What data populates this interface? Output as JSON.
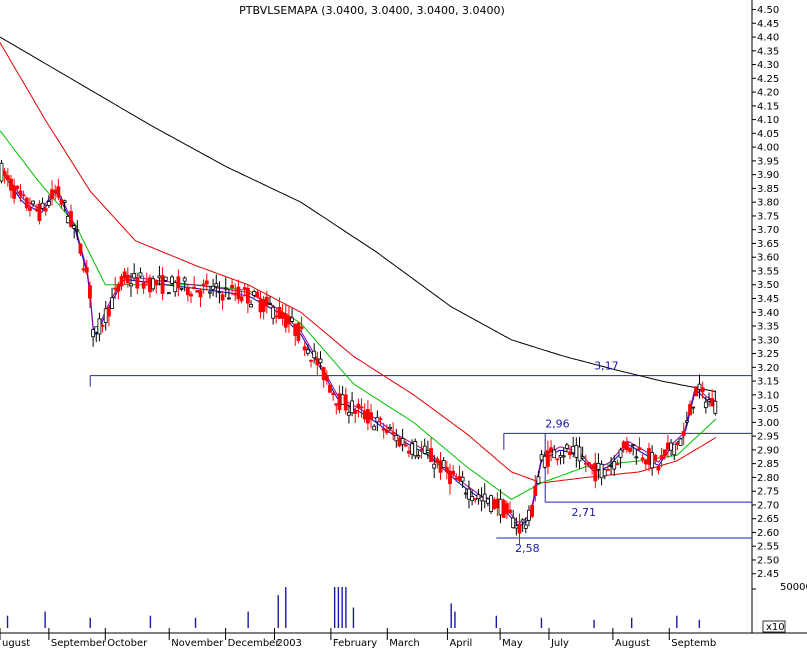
{
  "title": "PTBVLSEMAPA (3.0400, 3.0400, 3.0400, 3.0400)",
  "colors": {
    "background": "#ffffff",
    "candle_up": "#000000",
    "candle_down": "#ff0000",
    "ma_black": "#000000",
    "ma_red": "#e00000",
    "ma_green": "#00c000",
    "ma_blue": "#0000cc",
    "ma_purple": "#a000a0",
    "level_line": "#2222aa",
    "volume": "#1a1aa6"
  },
  "volume_axis": {
    "label": "50000",
    "multiplier_label": "x10"
  },
  "chart_data": {
    "type": "candlestick",
    "title": "PTBVLSEMAPA (3.0400, 3.0400, 3.0400, 3.0400)",
    "x_months": [
      "ugust",
      "September",
      "October",
      "November",
      "December",
      "2003",
      "February",
      "March",
      "April",
      "May",
      "July",
      "August",
      "Septemb"
    ],
    "y_ticks": [
      "4.50",
      "4.45",
      "4.40",
      "4.35",
      "4.30",
      "4.25",
      "4.20",
      "4.15",
      "4.10",
      "4.05",
      "4.00",
      "3.95",
      "3.90",
      "3.85",
      "3.80",
      "3.75",
      "3.70",
      "3.65",
      "3.60",
      "3.55",
      "3.50",
      "3.45",
      "3.40",
      "3.35",
      "3.30",
      "3.25",
      "3.20",
      "3.15",
      "3.10",
      "3.05",
      "3.00",
      "2.95",
      "2.90",
      "2.85",
      "2.80",
      "2.75",
      "2.70",
      "2.65",
      "2.60",
      "2.55",
      "2.50",
      "2.45"
    ],
    "ylim": [
      2.42,
      4.52
    ],
    "price_key": [
      {
        "t": 0.0,
        "v": 3.92
      },
      {
        "t": 0.03,
        "v": 3.8
      },
      {
        "t": 0.055,
        "v": 3.76
      },
      {
        "t": 0.075,
        "v": 3.84
      },
      {
        "t": 0.1,
        "v": 3.7
      },
      {
        "t": 0.118,
        "v": 3.52
      },
      {
        "t": 0.125,
        "v": 3.3
      },
      {
        "t": 0.145,
        "v": 3.42
      },
      {
        "t": 0.165,
        "v": 3.52
      },
      {
        "t": 0.22,
        "v": 3.5
      },
      {
        "t": 0.28,
        "v": 3.48
      },
      {
        "t": 0.33,
        "v": 3.46
      },
      {
        "t": 0.37,
        "v": 3.4
      },
      {
        "t": 0.4,
        "v": 3.32
      },
      {
        "t": 0.43,
        "v": 3.18
      },
      {
        "t": 0.45,
        "v": 3.08
      },
      {
        "t": 0.49,
        "v": 3.02
      },
      {
        "t": 0.53,
        "v": 2.94
      },
      {
        "t": 0.57,
        "v": 2.88
      },
      {
        "t": 0.61,
        "v": 2.78
      },
      {
        "t": 0.64,
        "v": 2.72
      },
      {
        "t": 0.665,
        "v": 2.7
      },
      {
        "t": 0.69,
        "v": 2.62
      },
      {
        "t": 0.705,
        "v": 2.65
      },
      {
        "t": 0.72,
        "v": 2.86
      },
      {
        "t": 0.745,
        "v": 2.9
      },
      {
        "t": 0.77,
        "v": 2.88
      },
      {
        "t": 0.79,
        "v": 2.82
      },
      {
        "t": 0.81,
        "v": 2.84
      },
      {
        "t": 0.835,
        "v": 2.92
      },
      {
        "t": 0.86,
        "v": 2.88
      },
      {
        "t": 0.875,
        "v": 2.84
      },
      {
        "t": 0.89,
        "v": 2.9
      },
      {
        "t": 0.91,
        "v": 2.95
      },
      {
        "t": 0.925,
        "v": 3.12
      },
      {
        "t": 0.94,
        "v": 3.08
      },
      {
        "t": 0.955,
        "v": 3.06
      }
    ],
    "ma200_key": [
      {
        "t": 0.0,
        "v": 4.4
      },
      {
        "t": 0.1,
        "v": 4.24
      },
      {
        "t": 0.2,
        "v": 4.08
      },
      {
        "t": 0.3,
        "v": 3.93
      },
      {
        "t": 0.4,
        "v": 3.8
      },
      {
        "t": 0.5,
        "v": 3.62
      },
      {
        "t": 0.6,
        "v": 3.42
      },
      {
        "t": 0.68,
        "v": 3.3
      },
      {
        "t": 0.75,
        "v": 3.24
      },
      {
        "t": 0.82,
        "v": 3.19
      },
      {
        "t": 0.88,
        "v": 3.15
      },
      {
        "t": 0.955,
        "v": 3.11
      }
    ],
    "ma100_key": [
      {
        "t": 0.0,
        "v": 4.38
      },
      {
        "t": 0.06,
        "v": 4.1
      },
      {
        "t": 0.12,
        "v": 3.84
      },
      {
        "t": 0.18,
        "v": 3.66
      },
      {
        "t": 0.26,
        "v": 3.57
      },
      {
        "t": 0.33,
        "v": 3.5
      },
      {
        "t": 0.4,
        "v": 3.4
      },
      {
        "t": 0.47,
        "v": 3.24
      },
      {
        "t": 0.55,
        "v": 3.1
      },
      {
        "t": 0.62,
        "v": 2.96
      },
      {
        "t": 0.68,
        "v": 2.82
      },
      {
        "t": 0.72,
        "v": 2.78
      },
      {
        "t": 0.78,
        "v": 2.8
      },
      {
        "t": 0.85,
        "v": 2.82
      },
      {
        "t": 0.9,
        "v": 2.86
      },
      {
        "t": 0.955,
        "v": 2.95
      }
    ],
    "ma50_key": [
      {
        "t": 0.0,
        "v": 4.06
      },
      {
        "t": 0.05,
        "v": 3.88
      },
      {
        "t": 0.1,
        "v": 3.72
      },
      {
        "t": 0.14,
        "v": 3.5
      },
      {
        "t": 0.18,
        "v": 3.5
      },
      {
        "t": 0.26,
        "v": 3.5
      },
      {
        "t": 0.33,
        "v": 3.48
      },
      {
        "t": 0.4,
        "v": 3.36
      },
      {
        "t": 0.47,
        "v": 3.14
      },
      {
        "t": 0.55,
        "v": 3.0
      },
      {
        "t": 0.62,
        "v": 2.84
      },
      {
        "t": 0.68,
        "v": 2.72
      },
      {
        "t": 0.72,
        "v": 2.78
      },
      {
        "t": 0.78,
        "v": 2.84
      },
      {
        "t": 0.85,
        "v": 2.86
      },
      {
        "t": 0.9,
        "v": 2.88
      },
      {
        "t": 0.955,
        "v": 3.02
      }
    ],
    "levels": [
      {
        "label": "3,17",
        "value": 3.17,
        "t_start": 0.12,
        "t_end": 1.0
      },
      {
        "label": "2,96",
        "value": 2.96,
        "t_start": 0.67,
        "t_end": 1.0
      },
      {
        "label": "2,71",
        "value": 2.71,
        "t_start": 0.725,
        "t_end": 1.0
      },
      {
        "label": "2,58",
        "value": 2.58,
        "t_start": 0.66,
        "t_end": 1.0
      }
    ],
    "volume_spikes": [
      {
        "t": 0.01,
        "v": 0.3
      },
      {
        "t": 0.06,
        "v": 0.4
      },
      {
        "t": 0.12,
        "v": 0.25
      },
      {
        "t": 0.2,
        "v": 0.3
      },
      {
        "t": 0.26,
        "v": 0.25
      },
      {
        "t": 0.33,
        "v": 0.4
      },
      {
        "t": 0.37,
        "v": 0.8
      },
      {
        "t": 0.38,
        "v": 1.0
      },
      {
        "t": 0.445,
        "v": 1.0
      },
      {
        "t": 0.45,
        "v": 1.0
      },
      {
        "t": 0.455,
        "v": 1.0
      },
      {
        "t": 0.46,
        "v": 1.0
      },
      {
        "t": 0.47,
        "v": 0.5
      },
      {
        "t": 0.6,
        "v": 0.6
      },
      {
        "t": 0.605,
        "v": 0.4
      },
      {
        "t": 0.66,
        "v": 0.3
      },
      {
        "t": 0.72,
        "v": 0.25
      },
      {
        "t": 0.79,
        "v": 0.2
      },
      {
        "t": 0.84,
        "v": 0.25
      },
      {
        "t": 0.9,
        "v": 0.3
      },
      {
        "t": 0.93,
        "v": 0.2
      }
    ]
  }
}
